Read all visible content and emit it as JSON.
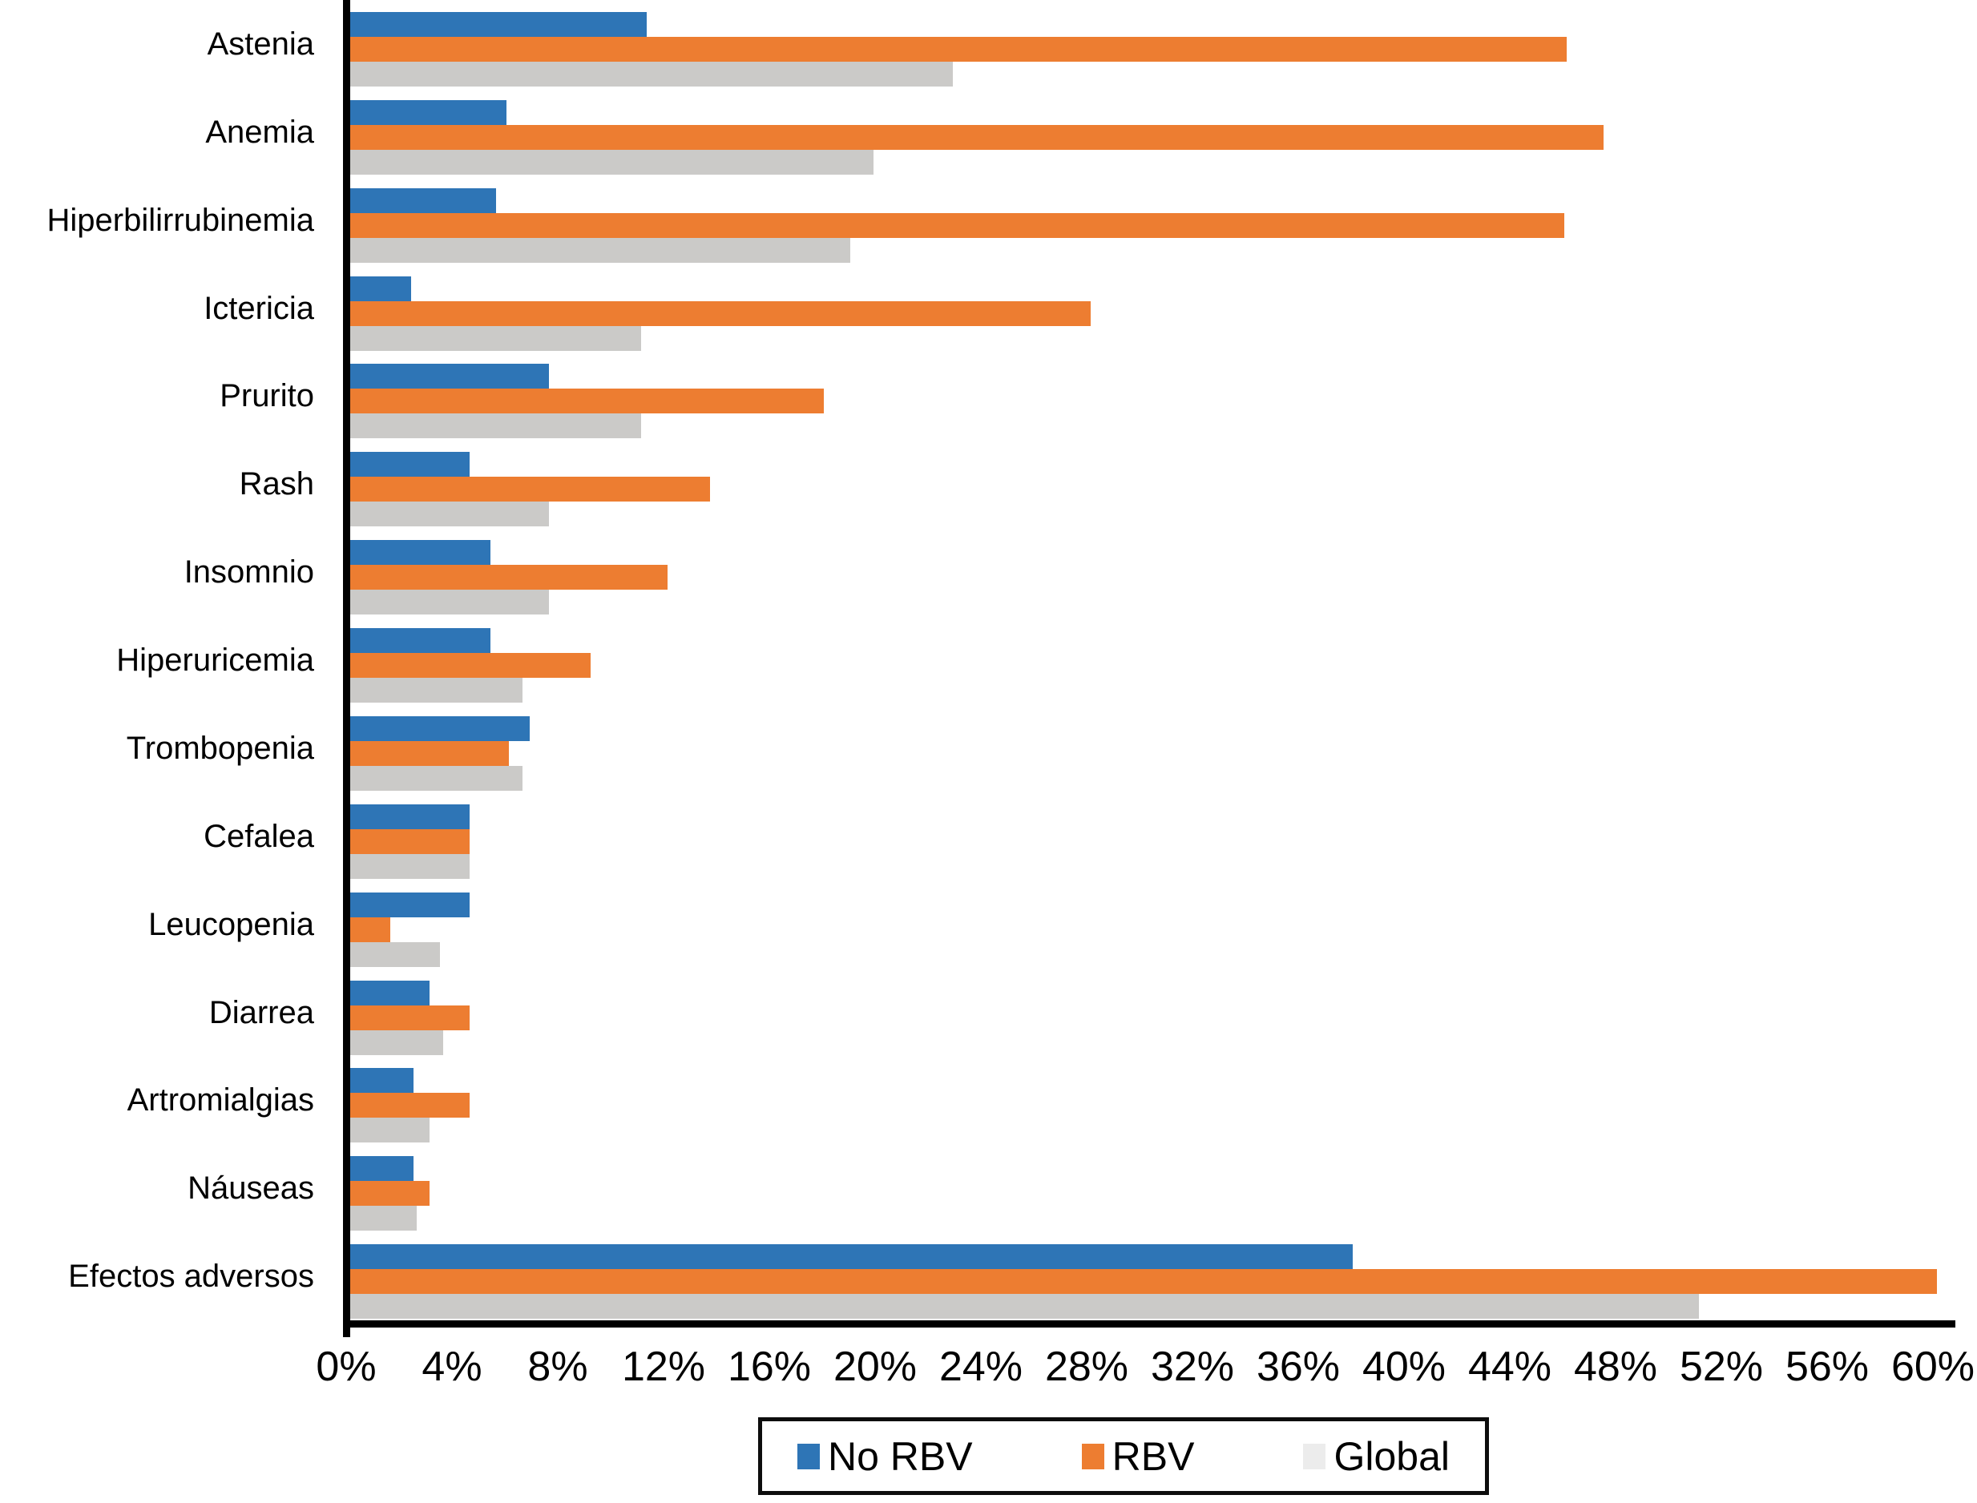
{
  "chart_data": {
    "type": "bar",
    "orientation": "horizontal",
    "title": "",
    "categories": [
      "Astenia",
      "Anemia",
      "Hiperbilirrubinemia",
      "Ictericia",
      "Prurito",
      "Rash",
      "Insomnio",
      "Hiperuricemia",
      "Trombopenia",
      "Cefalea",
      "Leucopenia",
      "Diarrea",
      "Artromialgias",
      "Náuseas",
      "Efectos adversos"
    ],
    "series": [
      {
        "name": "No RBV",
        "color": "#2E75B6",
        "legend_swatch": "#2E75B6",
        "values": [
          11.2,
          5.9,
          5.5,
          2.3,
          7.5,
          4.5,
          5.3,
          5.3,
          6.8,
          4.5,
          4.5,
          3.0,
          2.4,
          2.4,
          37.9
        ]
      },
      {
        "name": "RBV",
        "color": "#ED7D31",
        "legend_swatch": "#ED7D31",
        "values": [
          46.0,
          47.4,
          45.9,
          28.0,
          17.9,
          13.6,
          12.0,
          9.1,
          6.0,
          4.5,
          1.5,
          4.5,
          4.5,
          3.0,
          60.0
        ]
      },
      {
        "name": "Global",
        "color": "#CBCAC8",
        "legend_swatch": "#ECECEC",
        "values": [
          22.8,
          19.8,
          18.9,
          11.0,
          11.0,
          7.5,
          7.5,
          6.5,
          6.5,
          4.5,
          3.4,
          3.5,
          3.0,
          2.5,
          51.0
        ]
      }
    ],
    "x_axis": {
      "min": 0,
      "max": 60,
      "tick_step": 4,
      "unit": "%",
      "tick_labels": [
        "0%",
        "4%",
        "8%",
        "12%",
        "16%",
        "20%",
        "24%",
        "28%",
        "32%",
        "36%",
        "40%",
        "44%",
        "48%",
        "52%",
        "56%",
        "60%"
      ]
    },
    "grid": false,
    "legend_position": "bottom"
  },
  "colors": {
    "axis": "#000000",
    "background": "#FFFFFF",
    "legend_border": "#0D0D0D"
  }
}
